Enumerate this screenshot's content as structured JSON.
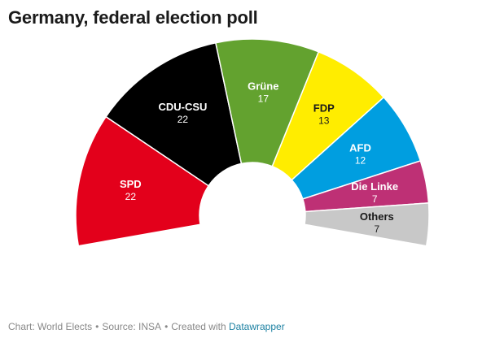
{
  "title": "Germany, federal election poll",
  "footer": {
    "chart_credit": "Chart: World Elects",
    "source": "Source: INSA",
    "created_with": "Created with",
    "tool_link": "Datawrapper",
    "separator": "•"
  },
  "chart_data": {
    "type": "pie",
    "variant": "semicircle-donut",
    "title": "Germany, federal election poll",
    "total": 100,
    "slices": [
      {
        "label": "SPD",
        "value": 22,
        "color": "#e3001b",
        "text_color": "#ffffff"
      },
      {
        "label": "CDU-CSU",
        "value": 22,
        "color": "#000000",
        "text_color": "#ffffff"
      },
      {
        "label": "Grüne",
        "value": 17,
        "color": "#63a22f",
        "text_color": "#ffffff"
      },
      {
        "label": "FDP",
        "value": 13,
        "color": "#ffed00",
        "text_color": "#1a1a1a"
      },
      {
        "label": "AFD",
        "value": 12,
        "color": "#009ee0",
        "text_color": "#ffffff"
      },
      {
        "label": "Die Linke",
        "value": 7,
        "color": "#be3075",
        "text_color": "#ffffff"
      },
      {
        "label": "Others",
        "value": 7,
        "color": "#c8c8c8",
        "text_color": "#1a1a1a"
      }
    ]
  }
}
